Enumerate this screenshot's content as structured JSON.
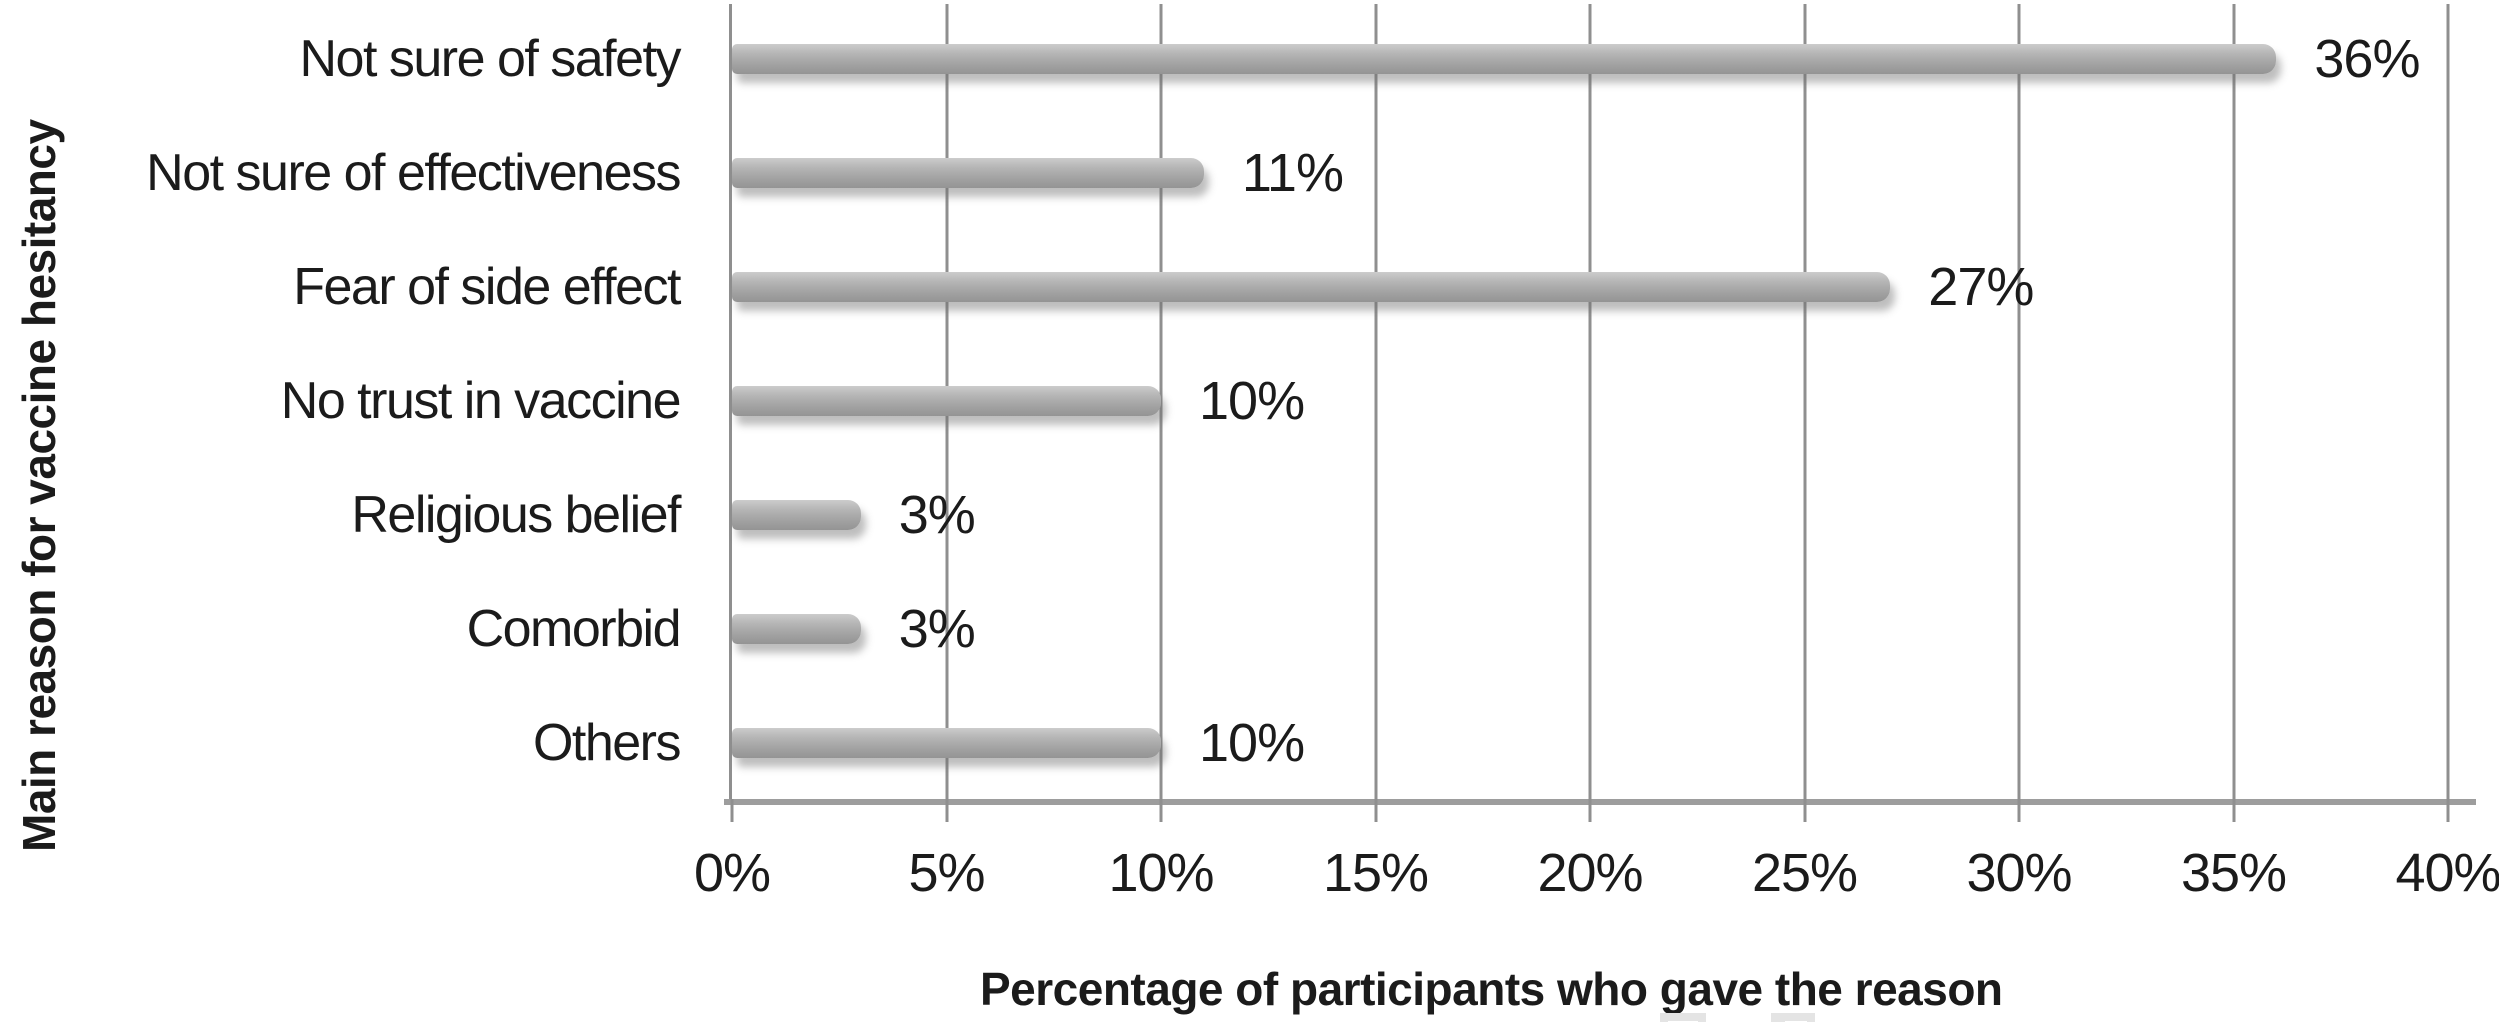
{
  "chart_data": {
    "type": "bar",
    "orientation": "horizontal",
    "categories": [
      "Not sure of safety",
      "Not sure of effectiveness",
      "Fear of side effect",
      "No trust in vaccine",
      "Religious belief",
      "Comorbid",
      "Others"
    ],
    "values": [
      36,
      11,
      27,
      10,
      3,
      3,
      10
    ],
    "data_labels": [
      "36%",
      "11%",
      "27%",
      "10%",
      "3%",
      "3%",
      "10%"
    ],
    "title": "",
    "xlabel": "Percentage of participants who gave the reason",
    "ylabel": "Main reason for vaccine hesitancy",
    "xlim": [
      0,
      40
    ],
    "x_ticks": [
      0,
      5,
      10,
      15,
      20,
      25,
      30,
      35,
      40
    ],
    "x_tick_labels": [
      "0%",
      "5%",
      "10%",
      "15%",
      "20%",
      "25%",
      "30%",
      "35%",
      "40%"
    ],
    "grid": "vertical-gridlines-on",
    "legend": "none",
    "colors": {
      "bar_fill": "#a6a6a6",
      "bar_gradient_top": "#cccccc",
      "bar_gradient_bottom": "#949494",
      "gridline": "#8f8f8f",
      "axis_line": "#9d9d9d",
      "text": "#1b1b1b",
      "background": "#ffffff",
      "bottom_artifact": "#e4e4e4"
    }
  },
  "decorations": {
    "bottom_edge_artifacts": [
      "cropped-gray-fragment",
      "cropped-gray-fragment"
    ]
  }
}
